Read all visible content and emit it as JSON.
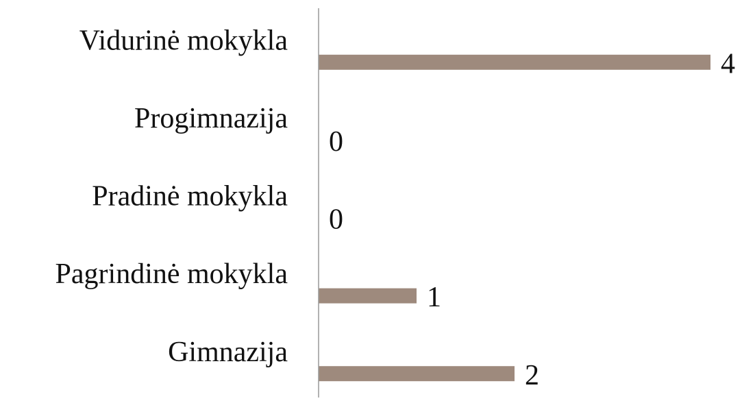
{
  "chart_data": {
    "type": "bar",
    "orientation": "horizontal",
    "categories": [
      "Vidurinė mokykla",
      "Progimnazija",
      "Pradinė mokykla",
      "Pagrindinė mokykla",
      "Gimnazija"
    ],
    "values": [
      4,
      0,
      0,
      1,
      2
    ],
    "color": "#9e8a7d",
    "xlim": [
      0,
      4
    ]
  }
}
